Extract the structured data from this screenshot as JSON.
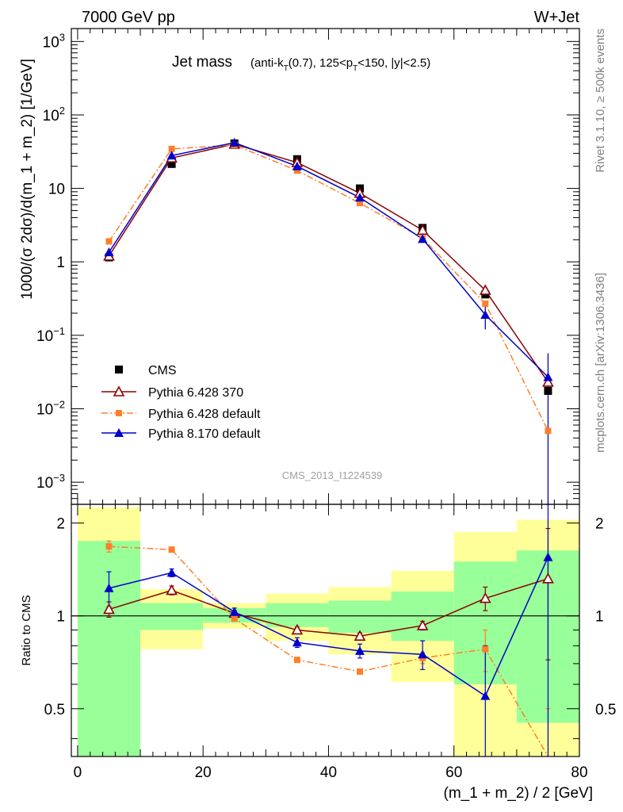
{
  "header": {
    "energy_label": "7000 GeV pp",
    "process_label": "W+Jet"
  },
  "side_labels": {
    "rivet": "Rivet 3.1.10, ≥ 500k events",
    "source": "mcplots.cern.ch [arXiv:1306.3436]"
  },
  "plot_title": {
    "main": "Jet mass",
    "sub": "(anti-kT(0.7), 125<pT<150, |y|<2.5)"
  },
  "analysis_id": "CMS_2013_I1224539",
  "chart_data": {
    "type": "scatter",
    "xlabel": "(m_1 + m_2) / 2 [GeV]",
    "ylabel": "1000/(σ 2dσ)/d(m_1 + m_2) [1/GeV]",
    "ratio_ylabel": "Ratio to CMS",
    "xlim": [
      -1,
      80
    ],
    "ylim": [
      0.0005,
      1500
    ],
    "yscale": "log",
    "ratio_ylim": [
      0.35,
      2.3
    ],
    "ratio_yscale": "log",
    "x_ticks": [
      0,
      20,
      40,
      60,
      80
    ],
    "y_ticks": [
      "10^-3",
      "10^-2",
      "10^-1",
      "1",
      "10",
      "10^2",
      "10^3"
    ],
    "ratio_ticks": [
      "0.5",
      "1",
      "2"
    ],
    "legend_position": "left",
    "bins": [
      [
        0,
        10
      ],
      [
        10,
        20
      ],
      [
        20,
        30
      ],
      [
        30,
        40
      ],
      [
        40,
        50
      ],
      [
        50,
        60
      ],
      [
        60,
        70
      ],
      [
        70,
        80
      ]
    ],
    "x": [
      5,
      15,
      25,
      35,
      45,
      55,
      65,
      75
    ],
    "cms": {
      "name": "CMS",
      "values": [
        1.15,
        21.5,
        41,
        25,
        10,
        2.9,
        0.36,
        0.0175
      ],
      "band_inner": [
        [
          0.0,
          1.75
        ],
        [
          0.9,
          1.1
        ],
        [
          0.95,
          1.06
        ],
        [
          0.92,
          1.1
        ],
        [
          0.88,
          1.12
        ],
        [
          0.83,
          1.2
        ],
        [
          0.6,
          1.5
        ],
        [
          0.45,
          1.63
        ]
      ],
      "band_outer": [
        [
          0.0,
          2.25
        ],
        [
          0.78,
          1.22
        ],
        [
          0.91,
          1.1
        ],
        [
          0.83,
          1.18
        ],
        [
          0.75,
          1.24
        ],
        [
          0.61,
          1.4
        ],
        [
          0.35,
          1.87
        ],
        [
          0.35,
          2.05
        ]
      ]
    },
    "series": [
      {
        "name": "Pythia 6.428 370",
        "color": "#8b0000",
        "marker": "open-triangle",
        "line": "solid",
        "values": [
          1.2,
          26,
          40,
          22.5,
          8.6,
          2.7,
          0.41,
          0.023
        ],
        "ratio": [
          1.05,
          1.21,
          1.02,
          0.9,
          0.86,
          0.93,
          1.14,
          1.32
        ],
        "ratio_err": [
          0.06,
          0.04,
          0.02,
          0.02,
          0.02,
          0.03,
          0.1,
          0.6
        ]
      },
      {
        "name": "Pythia 6.428 default",
        "color": "#ff7f2a",
        "marker": "square",
        "line": "dashdot",
        "values": [
          1.9,
          34.5,
          39,
          17.5,
          6.3,
          2.1,
          0.27,
          0.005
        ],
        "ratio": [
          1.68,
          1.64,
          0.98,
          0.72,
          0.66,
          0.73,
          0.78,
          0.3
        ],
        "ratio_err": [
          0.07,
          0.03,
          0.02,
          0.01,
          0.01,
          0.03,
          0.12,
          0.2
        ]
      },
      {
        "name": "Pythia 8.170 default",
        "color": "#0000cc",
        "marker": "triangle",
        "line": "solid",
        "values": [
          1.35,
          28,
          42,
          20,
          7.5,
          2.05,
          0.19,
          0.027
        ],
        "ratio": [
          1.23,
          1.38,
          1.03,
          0.82,
          0.77,
          0.75,
          0.55,
          1.55
        ],
        "ratio_err": [
          0.16,
          0.04,
          0.03,
          0.03,
          0.04,
          0.08,
          0.25,
          1.3
        ],
        "abs_err": [
          0.2,
          1.5,
          1.5,
          1.0,
          0.5,
          0.15,
          0.07,
          0.03
        ]
      }
    ]
  }
}
